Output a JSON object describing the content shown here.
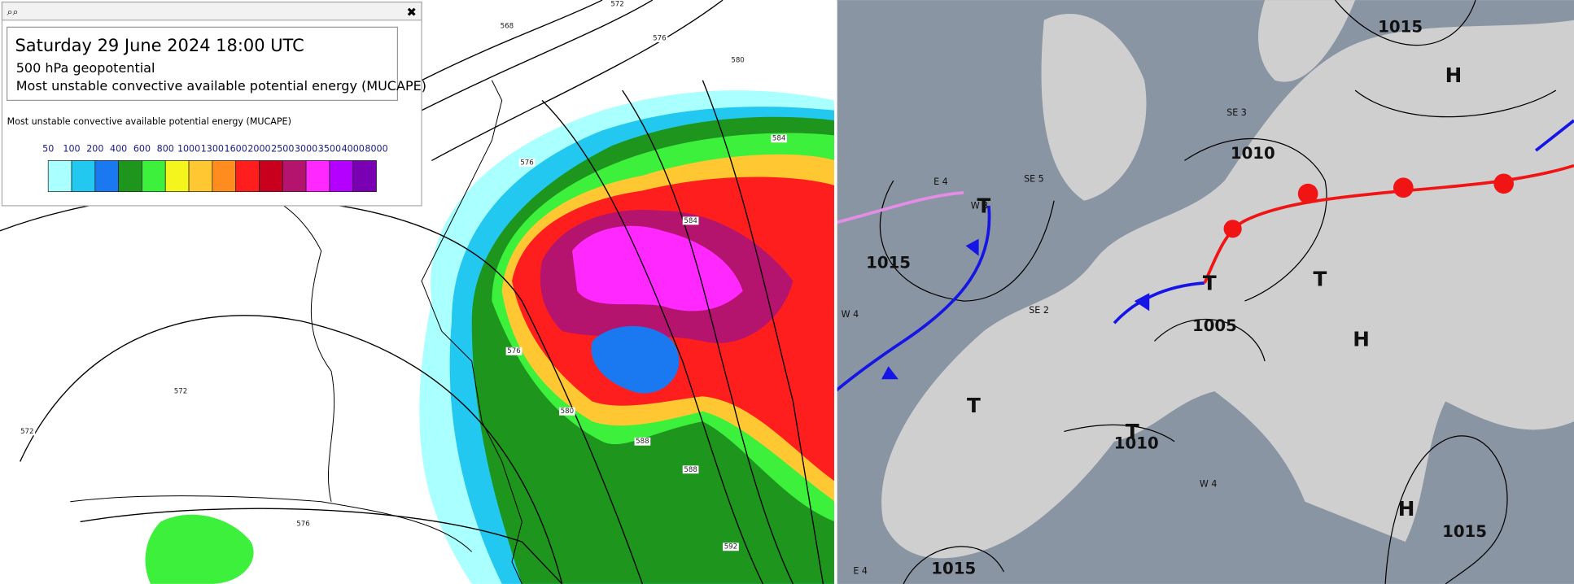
{
  "popup": {
    "title": "Saturday 29 June 2024 18:00 UTC",
    "lines": [
      "500 hPa geopotential",
      "Most unstable convective available potential energy (MUCAPE)"
    ],
    "legend": {
      "title": "Most unstable convective available potential energy (MUCAPE)",
      "ticks": [
        50,
        100,
        200,
        400,
        600,
        800,
        1000,
        1300,
        1600,
        2000,
        2500,
        3000,
        3500,
        4000,
        8000
      ],
      "colors": [
        "#aaffff",
        "#22c8f0",
        "#1a78f0",
        "#1e961e",
        "#3cf03c",
        "#f5f51e",
        "#ffc832",
        "#ff8c1e",
        "#ff1e1e",
        "#c8001e",
        "#b4146e",
        "#ff28ff",
        "#b400ff",
        "#7a00b4"
      ]
    }
  },
  "left_map": {
    "contour_labels": [
      "568",
      "572",
      "576",
      "580",
      "576",
      "584",
      "584",
      "576",
      "580",
      "572",
      "572",
      "576",
      "588",
      "588",
      "592"
    ]
  },
  "right_map": {
    "isobar_labels": [
      "1015",
      "1010",
      "1005",
      "1010",
      "1015",
      "1015",
      "1015"
    ],
    "pressure_centers": [
      "H",
      "H",
      "H",
      "T",
      "T",
      "T",
      "T",
      "T"
    ],
    "wind_labels": [
      "SE 5",
      "SE 3",
      "SE 2",
      "W 3",
      "E 4",
      "W 4",
      "W 4",
      "E 4"
    ]
  }
}
